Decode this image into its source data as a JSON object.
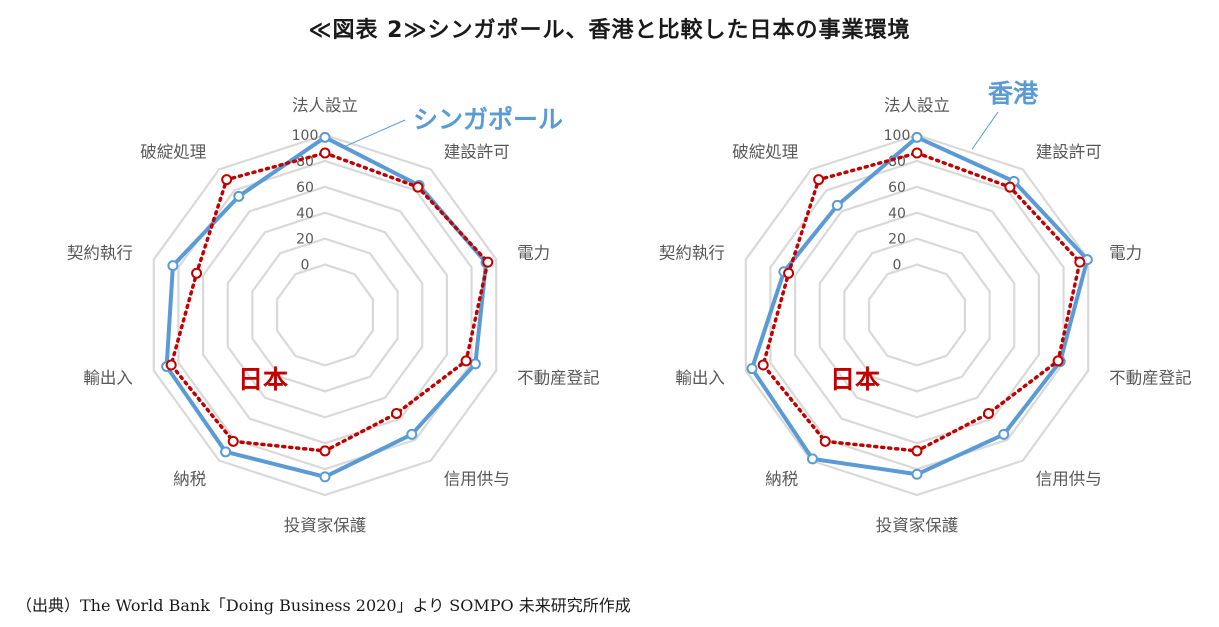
{
  "title": "≪図表 2≫シンガポール、香港と比較した日本の事業環境",
  "source": "（出典）The World Bank「Doing Business 2020」より SOMPO 未来研究所作成",
  "colors": {
    "grid": "#d9d9d9",
    "blue": "#5b9bd5",
    "red": "#c00000"
  },
  "chart_data": [
    {
      "type": "radar",
      "axes": [
        "法人設立",
        "建設許可",
        "電力",
        "不動産登記",
        "信用供与",
        "投資家保護",
        "納税",
        "輸出入",
        "契約執行",
        "破綻処理"
      ],
      "ticks": [
        "0",
        "20",
        "40",
        "60",
        "80",
        "100"
      ],
      "rlim": [
        0,
        100
      ],
      "series": [
        {
          "name": "シンガポール",
          "values": [
            98.2,
            84.7,
            91.8,
            83.1,
            75,
            86,
            91.6,
            89.6,
            84.5,
            74.3
          ]
        },
        {
          "name": "日本",
          "values": [
            86.1,
            83.1,
            93.2,
            75.6,
            55,
            66,
            81.6,
            85.9,
            65.3,
            90.2
          ]
        }
      ]
    },
    {
      "type": "radar",
      "axes": [
        "法人設立",
        "建設許可",
        "電力",
        "不動産登記",
        "信用供与",
        "投資家保護",
        "納税",
        "輸出入",
        "契約執行",
        "破綻処理"
      ],
      "ticks": [
        "0",
        "20",
        "40",
        "60",
        "80",
        "100"
      ],
      "rlim": [
        0,
        100
      ],
      "series": [
        {
          "name": "香港",
          "values": [
            98.2,
            88.5,
            99.3,
            77.3,
            75,
            84,
            98.3,
            95,
            69.1,
            65.7
          ]
        },
        {
          "name": "日本",
          "values": [
            86.1,
            83.1,
            93.2,
            75.6,
            55,
            66,
            81.6,
            85.9,
            65.3,
            90.2
          ]
        }
      ]
    }
  ]
}
